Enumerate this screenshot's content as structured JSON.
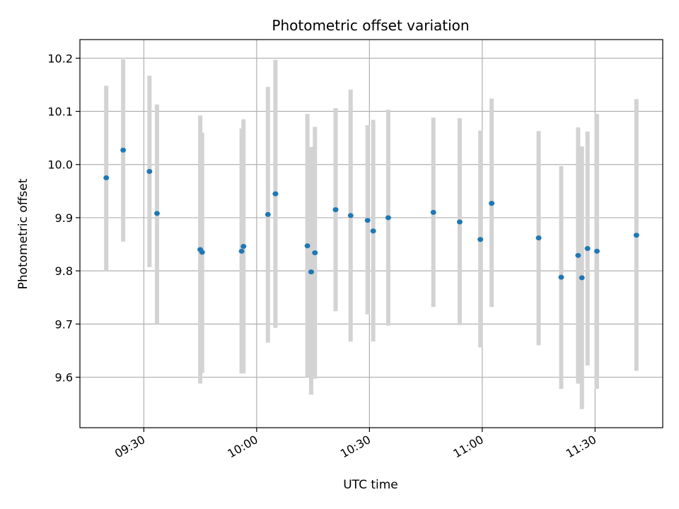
{
  "chart_data": {
    "type": "scatter",
    "title": "Photometric offset variation",
    "xlabel": "UTC time",
    "ylabel": "Photometric offset",
    "xlim": [
      "09:13",
      "11:48"
    ],
    "ylim": [
      9.505,
      10.235
    ],
    "grid": true,
    "x_ticks": [
      "09:30",
      "10:00",
      "10:30",
      "11:00",
      "11:30"
    ],
    "y_ticks": [
      9.6,
      9.7,
      9.8,
      9.9,
      10.0,
      10.1,
      10.2
    ],
    "y_tick_labels": [
      "9.6",
      "9.7",
      "9.8",
      "9.9",
      "10.0",
      "10.1",
      "10.2"
    ],
    "colors": {
      "points": "#1f77b4",
      "errorbars": "#d3d3d3",
      "grid": "#b0b0b0"
    },
    "series": [
      {
        "marker": "point",
        "points": [
          {
            "t": "09:20:00",
            "y": 9.975,
            "lo": 9.8,
            "hi": 10.148
          },
          {
            "t": "09:24:30",
            "y": 10.027,
            "lo": 9.855,
            "hi": 10.198
          },
          {
            "t": "09:31:30",
            "y": 9.987,
            "lo": 9.807,
            "hi": 10.167
          },
          {
            "t": "09:33:30",
            "y": 9.908,
            "lo": 9.7,
            "hi": 10.113
          },
          {
            "t": "09:45:00",
            "y": 9.84,
            "lo": 9.588,
            "hi": 10.092
          },
          {
            "t": "09:45:30",
            "y": 9.835,
            "lo": 9.608,
            "hi": 10.06
          },
          {
            "t": "09:56:00",
            "y": 9.837,
            "lo": 9.607,
            "hi": 10.068
          },
          {
            "t": "09:56:30",
            "y": 9.846,
            "lo": 9.607,
            "hi": 10.085
          },
          {
            "t": "10:03:00",
            "y": 9.906,
            "lo": 9.665,
            "hi": 10.146
          },
          {
            "t": "10:05:00",
            "y": 9.945,
            "lo": 9.693,
            "hi": 10.197
          },
          {
            "t": "10:13:30",
            "y": 9.847,
            "lo": 9.6,
            "hi": 10.095
          },
          {
            "t": "10:14:30",
            "y": 9.798,
            "lo": 9.567,
            "hi": 10.033
          },
          {
            "t": "10:15:30",
            "y": 9.834,
            "lo": 9.597,
            "hi": 10.071
          },
          {
            "t": "10:21:00",
            "y": 9.915,
            "lo": 9.724,
            "hi": 10.106
          },
          {
            "t": "10:25:00",
            "y": 9.904,
            "lo": 9.667,
            "hi": 10.141
          },
          {
            "t": "10:29:30",
            "y": 9.895,
            "lo": 9.718,
            "hi": 10.074
          },
          {
            "t": "10:31:00",
            "y": 9.875,
            "lo": 9.667,
            "hi": 10.084
          },
          {
            "t": "10:35:00",
            "y": 9.9,
            "lo": 9.697,
            "hi": 10.103
          },
          {
            "t": "10:47:00",
            "y": 9.91,
            "lo": 9.732,
            "hi": 10.088
          },
          {
            "t": "10:54:00",
            "y": 9.892,
            "lo": 9.698,
            "hi": 10.087
          },
          {
            "t": "10:59:30",
            "y": 9.859,
            "lo": 9.656,
            "hi": 10.064
          },
          {
            "t": "11:02:30",
            "y": 9.927,
            "lo": 9.732,
            "hi": 10.124
          },
          {
            "t": "11:15:00",
            "y": 9.862,
            "lo": 9.66,
            "hi": 10.063
          },
          {
            "t": "11:21:00",
            "y": 9.788,
            "lo": 9.578,
            "hi": 9.997
          },
          {
            "t": "11:25:30",
            "y": 9.829,
            "lo": 9.588,
            "hi": 10.07
          },
          {
            "t": "11:26:30",
            "y": 9.787,
            "lo": 9.54,
            "hi": 10.034
          },
          {
            "t": "11:28:00",
            "y": 9.842,
            "lo": 9.622,
            "hi": 10.062
          },
          {
            "t": "11:30:30",
            "y": 9.837,
            "lo": 9.578,
            "hi": 10.095
          },
          {
            "t": "11:41:00",
            "y": 9.867,
            "lo": 9.612,
            "hi": 10.123
          }
        ]
      }
    ]
  }
}
